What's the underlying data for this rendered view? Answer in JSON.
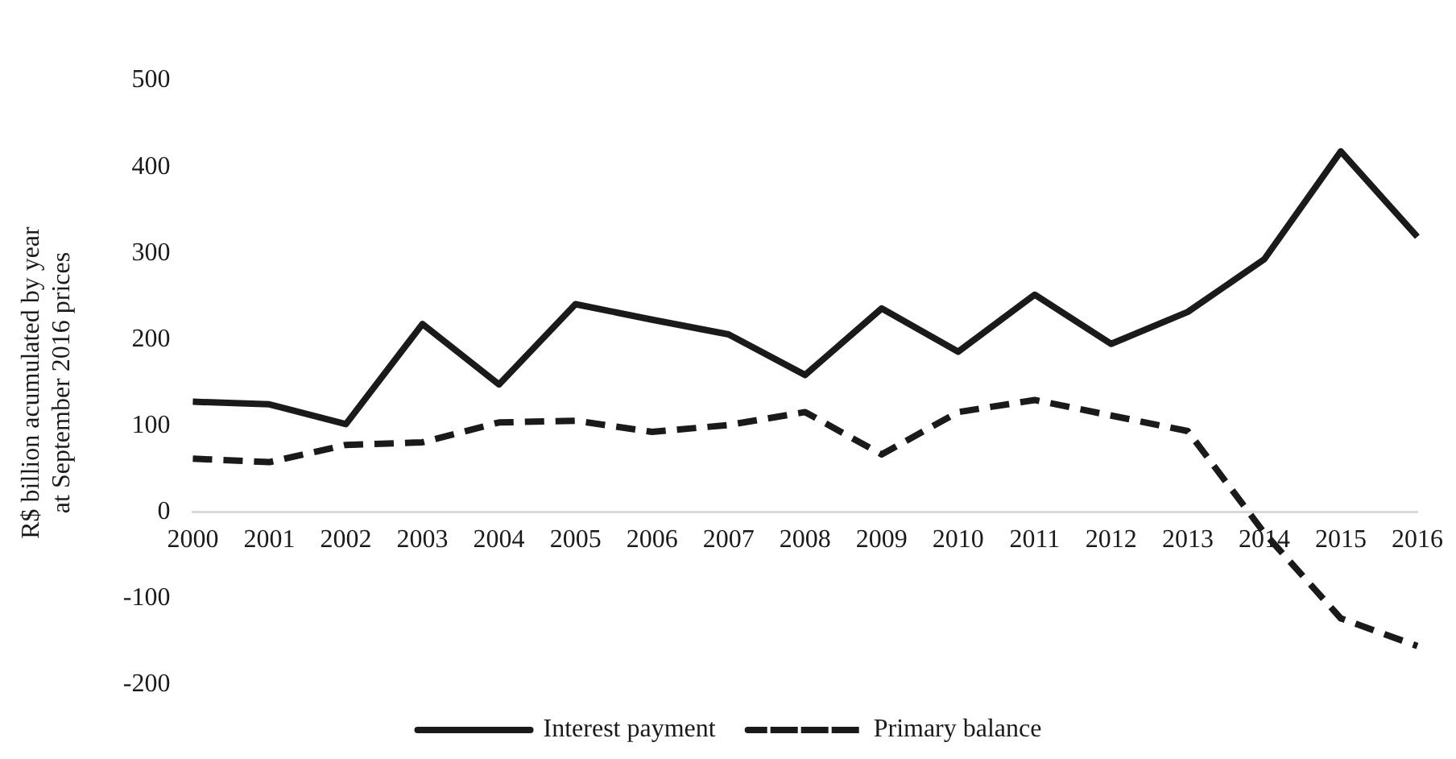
{
  "chart_data": {
    "type": "line",
    "ylabel": "R$ billion acumulated by year\nat September 2016 prices",
    "categories": [
      "2000",
      "2001",
      "2002",
      "2003",
      "2004",
      "2005",
      "2006",
      "2007",
      "2008",
      "2009",
      "2010",
      "2011",
      "2012",
      "2013",
      "2014",
      "2015",
      "2016"
    ],
    "series": [
      {
        "name": "Interest payment",
        "color": "#1a1a1a",
        "line_style": "solid",
        "values": [
          128,
          125,
          102,
          218,
          148,
          241,
          223,
          206,
          159,
          236,
          186,
          252,
          195,
          232,
          293,
          418,
          319
        ]
      },
      {
        "name": "Primary balance",
        "color": "#1a1a1a",
        "line_style": "dashed",
        "values": [
          62,
          58,
          78,
          81,
          104,
          106,
          93,
          101,
          116,
          67,
          116,
          130,
          112,
          94,
          -24,
          -123,
          -155
        ]
      }
    ],
    "ylim": [
      -200,
      500
    ],
    "yticks": [
      -200,
      -100,
      0,
      100,
      200,
      300,
      400,
      500
    ],
    "grid": false,
    "legend": "bottom",
    "marker": "none"
  }
}
